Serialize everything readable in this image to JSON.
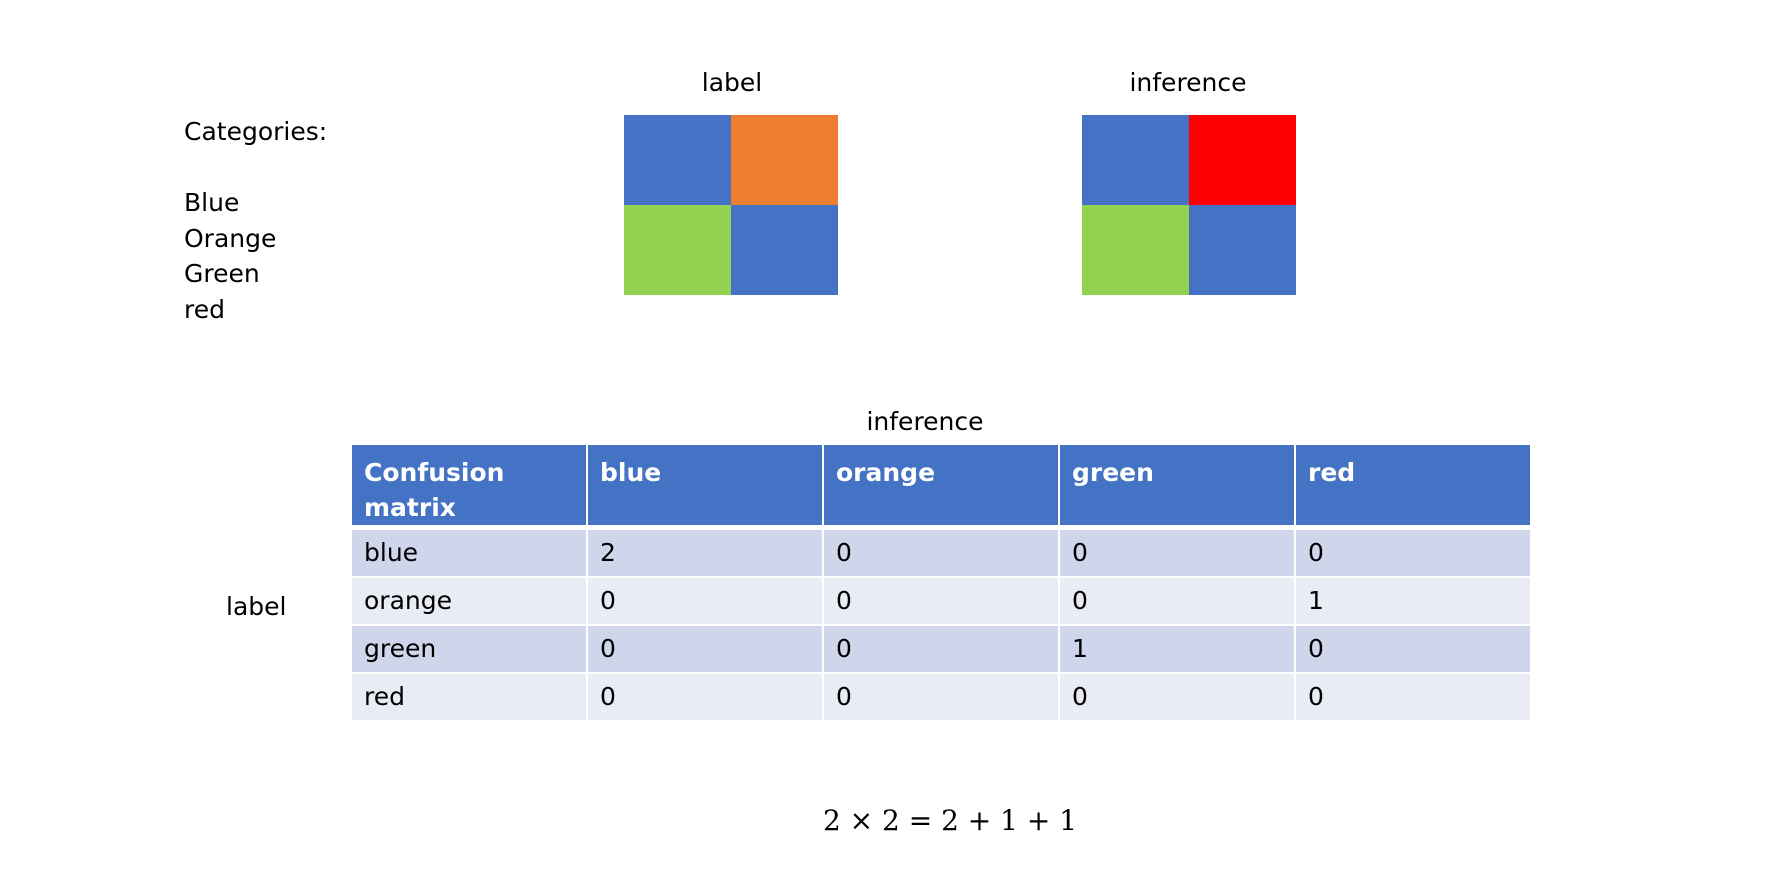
{
  "categories": {
    "heading": "Categories:",
    "items": [
      "Blue",
      "Orange",
      "Green",
      "red"
    ]
  },
  "grids": {
    "label": {
      "title": "label",
      "cells": [
        {
          "name": "blue",
          "color": "#4472c4"
        },
        {
          "name": "orange",
          "color": "#ed7d31"
        },
        {
          "name": "green",
          "color": "#92d050"
        },
        {
          "name": "blue",
          "color": "#4472c4"
        }
      ]
    },
    "inference": {
      "title": "inference",
      "cells": [
        {
          "name": "blue",
          "color": "#4472c4"
        },
        {
          "name": "red",
          "color": "#ff0000"
        },
        {
          "name": "green",
          "color": "#92d050"
        },
        {
          "name": "blue",
          "color": "#4472c4"
        }
      ]
    }
  },
  "confusion_matrix": {
    "column_axis_label": "inference",
    "row_axis_label": "label",
    "corner_header": "Confusion\nmatrix",
    "header_color": "#4472c4",
    "columns": [
      "blue",
      "orange",
      "green",
      "red"
    ],
    "rows": [
      {
        "label": "blue",
        "values": [
          "2",
          "0",
          "0",
          "0"
        ]
      },
      {
        "label": "orange",
        "values": [
          "0",
          "0",
          "0",
          "1"
        ]
      },
      {
        "label": "green",
        "values": [
          "0",
          "0",
          "1",
          "0"
        ]
      },
      {
        "label": "red",
        "values": [
          "0",
          "0",
          "0",
          "0"
        ]
      }
    ]
  },
  "equation": "2 × 2 = 2 + 1 + 1"
}
